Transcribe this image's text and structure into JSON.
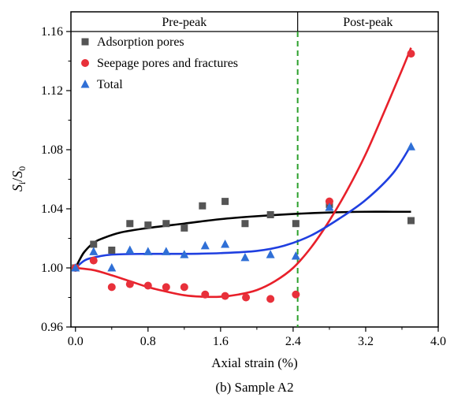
{
  "chart_data": {
    "type": "scatter",
    "caption": "(b) Sample A2",
    "xlabel": "Axial strain (%)",
    "ylabel": {
      "base": "S",
      "sub1": "i",
      "sep": "/",
      "sub2": "0"
    },
    "xlim": [
      -0.05,
      4.0
    ],
    "ylim": [
      0.96,
      1.16
    ],
    "xticks": [
      "0.0",
      "0.8",
      "1.6",
      "2.4",
      "3.2",
      "4.0"
    ],
    "yticks": [
      "0.96",
      "1.00",
      "1.04",
      "1.08",
      "1.12",
      "1.16"
    ],
    "grid": false,
    "legend_position": "top-left",
    "regions": [
      {
        "label": "Pre-peak",
        "x_from": -0.05,
        "x_to": 2.45
      },
      {
        "label": "Post-peak",
        "x_from": 2.45,
        "x_to": 4.0
      }
    ],
    "divider_x": 2.45,
    "divider_color": "#2ca02c",
    "series": [
      {
        "name": "Adsorption pores",
        "marker": "square",
        "color": "#555555",
        "points": [
          [
            0.0,
            1.0
          ],
          [
            0.2,
            1.016
          ],
          [
            0.4,
            1.012
          ],
          [
            0.6,
            1.03
          ],
          [
            0.8,
            1.029
          ],
          [
            1.0,
            1.03
          ],
          [
            1.2,
            1.027
          ],
          [
            1.4,
            1.042
          ],
          [
            1.65,
            1.045
          ],
          [
            1.87,
            1.03
          ],
          [
            2.15,
            1.036
          ],
          [
            2.43,
            1.03
          ],
          [
            2.8,
            1.043
          ],
          [
            3.7,
            1.032
          ]
        ],
        "fit": {
          "color": "#000000",
          "points": [
            [
              0.0,
              1.0
            ],
            [
              0.05,
              1.006
            ],
            [
              0.1,
              1.011
            ],
            [
              0.2,
              1.017
            ],
            [
              0.3,
              1.02
            ],
            [
              0.5,
              1.024
            ],
            [
              0.8,
              1.027
            ],
            [
              1.2,
              1.03
            ],
            [
              1.6,
              1.033
            ],
            [
              2.0,
              1.035
            ],
            [
              2.4,
              1.0365
            ],
            [
              2.8,
              1.0375
            ],
            [
              3.2,
              1.038
            ],
            [
              3.5,
              1.038
            ],
            [
              3.7,
              1.038
            ]
          ]
        }
      },
      {
        "name": "Seepage pores and fractures",
        "marker": "circle",
        "color": "#e8303a",
        "points": [
          [
            0.0,
            1.0
          ],
          [
            0.2,
            1.005
          ],
          [
            0.4,
            0.987
          ],
          [
            0.6,
            0.989
          ],
          [
            0.8,
            0.988
          ],
          [
            1.0,
            0.987
          ],
          [
            1.2,
            0.987
          ],
          [
            1.43,
            0.982
          ],
          [
            1.65,
            0.981
          ],
          [
            1.88,
            0.98
          ],
          [
            2.15,
            0.979
          ],
          [
            2.43,
            0.982
          ],
          [
            2.8,
            1.045
          ],
          [
            3.7,
            1.145
          ]
        ],
        "fit": {
          "color": "#e8202a",
          "points": [
            [
              0.0,
              1.0
            ],
            [
              0.2,
              0.9985
            ],
            [
              0.4,
              0.995
            ],
            [
              0.6,
              0.991
            ],
            [
              0.8,
              0.987
            ],
            [
              1.0,
              0.984
            ],
            [
              1.2,
              0.9815
            ],
            [
              1.4,
              0.9805
            ],
            [
              1.6,
              0.9805
            ],
            [
              1.8,
              0.982
            ],
            [
              2.0,
              0.985
            ],
            [
              2.2,
              0.991
            ],
            [
              2.4,
              1.0
            ],
            [
              2.6,
              1.014
            ],
            [
              2.8,
              1.032
            ],
            [
              3.0,
              1.053
            ],
            [
              3.2,
              1.077
            ],
            [
              3.4,
              1.105
            ],
            [
              3.6,
              1.134
            ],
            [
              3.7,
              1.149
            ]
          ]
        }
      },
      {
        "name": "Total",
        "marker": "triangle",
        "color": "#2f6fd6",
        "points": [
          [
            0.0,
            1.0
          ],
          [
            0.2,
            1.011
          ],
          [
            0.4,
            1.0
          ],
          [
            0.6,
            1.012
          ],
          [
            0.8,
            1.011
          ],
          [
            1.0,
            1.011
          ],
          [
            1.2,
            1.009
          ],
          [
            1.43,
            1.015
          ],
          [
            1.65,
            1.016
          ],
          [
            1.87,
            1.007
          ],
          [
            2.15,
            1.009
          ],
          [
            2.43,
            1.008
          ],
          [
            2.8,
            1.041
          ],
          [
            3.7,
            1.082
          ]
        ],
        "fit": {
          "color": "#1f3fe0",
          "points": [
            [
              0.0,
              1.0
            ],
            [
              0.1,
              1.005
            ],
            [
              0.2,
              1.007
            ],
            [
              0.4,
              1.009
            ],
            [
              0.8,
              1.0095
            ],
            [
              1.2,
              1.0095
            ],
            [
              1.6,
              1.01
            ],
            [
              2.0,
              1.0115
            ],
            [
              2.3,
              1.015
            ],
            [
              2.6,
              1.022
            ],
            [
              2.9,
              1.033
            ],
            [
              3.2,
              1.046
            ],
            [
              3.5,
              1.064
            ],
            [
              3.7,
              1.083
            ]
          ]
        }
      }
    ]
  }
}
